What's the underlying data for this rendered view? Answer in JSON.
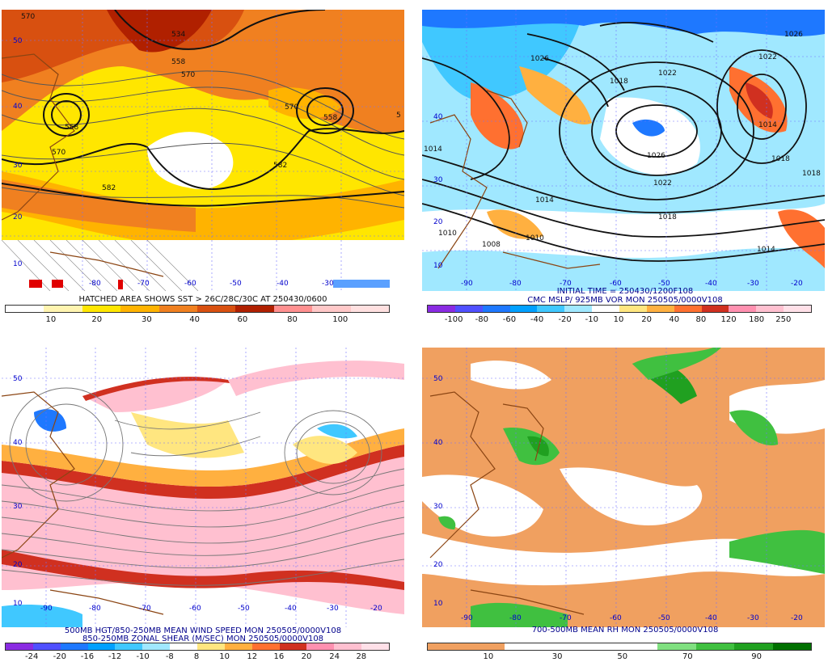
{
  "panels": [
    {
      "caption1": "HATCHED AREA SHOWS SST > 26C/28C/30C AT 250430/0600",
      "caption2": "",
      "colorbar": {
        "labels": [
          "10",
          "20",
          "30",
          "40",
          "60",
          "80",
          "100"
        ],
        "colors": [
          "#ffffff",
          "#fff4b0",
          "#ffe600",
          "#ffb300",
          "#f08020",
          "#d85010",
          "#b02000",
          "#ff9090",
          "#ffc8c8",
          "#ffe0e0"
        ]
      },
      "contour_labels": [
        "570",
        "534",
        "558",
        "570",
        "558",
        "570",
        "582",
        "582",
        "558",
        "570",
        "5"
      ],
      "lat_labels": [
        "50",
        "40",
        "30",
        "20",
        "10"
      ],
      "lon_labels": [
        "-80",
        "-70",
        "-60",
        "-50",
        "-40",
        "-30"
      ]
    },
    {
      "caption1": "INITIAL TIME = 250430/1200F108",
      "caption2": "CMC MSLP/ 925MB VOR MON 250505/0000V108",
      "colorbar": {
        "labels": [
          "-100",
          "-80",
          "-60",
          "-40",
          "-20",
          "-10",
          "10",
          "20",
          "40",
          "80",
          "120",
          "180",
          "250"
        ],
        "colors": [
          "#8a2be2",
          "#5050ff",
          "#1e78ff",
          "#00a0ff",
          "#40c8ff",
          "#a0e8ff",
          "#ffffff",
          "#ffe680",
          "#ffb040",
          "#ff7030",
          "#d03020",
          "#ff90b0",
          "#ffc0d0",
          "#ffe0e8"
        ]
      },
      "contour_labels": [
        "1026",
        "1022",
        "1018",
        "1026",
        "1022",
        "1018",
        "1014",
        "1010",
        "1014",
        "1014",
        "1018",
        "1018",
        "1014",
        "1008",
        "1010",
        "1026",
        "1022"
      ],
      "lat_labels": [
        "40",
        "30",
        "20",
        "10"
      ],
      "lon_labels": [
        "-90",
        "-80",
        "-70",
        "-60",
        "-50",
        "-40",
        "-30",
        "-20"
      ]
    },
    {
      "caption1": "500MB HGT/850-250MB MEAN WIND SPEED MON 250505/0000V108",
      "caption2": "850-250MB ZONAL SHEAR (M/SEC) MON 250505/0000V108",
      "colorbar": {
        "labels": [
          "-24",
          "-20",
          "-16",
          "-12",
          "-10",
          "-8",
          "8",
          "10",
          "12",
          "16",
          "20",
          "24",
          "28"
        ],
        "colors": [
          "#8a2be2",
          "#5050ff",
          "#1e78ff",
          "#00a0ff",
          "#40c8ff",
          "#a0e8ff",
          "#ffffff",
          "#ffe680",
          "#ffb040",
          "#ff7030",
          "#d03020",
          "#ff90b0",
          "#ffc0d0",
          "#ffe0e8"
        ]
      },
      "lat_labels": [
        "50",
        "40",
        "30",
        "20",
        "10"
      ],
      "lon_labels": [
        "-90",
        "-80",
        "-70",
        "-60",
        "-50",
        "-40",
        "-30",
        "-20"
      ]
    },
    {
      "caption1": "700-500MB MEAN RH MON 250505/0000V108",
      "caption2": "",
      "colorbar": {
        "labels": [
          "10",
          "30",
          "50",
          "70",
          "90"
        ],
        "colors": [
          "#f0a060",
          "#f0a060",
          "#ffffff",
          "#ffffff",
          "#ffffff",
          "#ffffff",
          "#80e080",
          "#40c040",
          "#20a020",
          "#007000"
        ]
      },
      "lat_labels": [
        "50",
        "40",
        "30",
        "20",
        "10"
      ],
      "lon_labels": [
        "-90",
        "-80",
        "-70",
        "-60",
        "-50",
        "-40",
        "-30",
        "-20"
      ]
    }
  ]
}
